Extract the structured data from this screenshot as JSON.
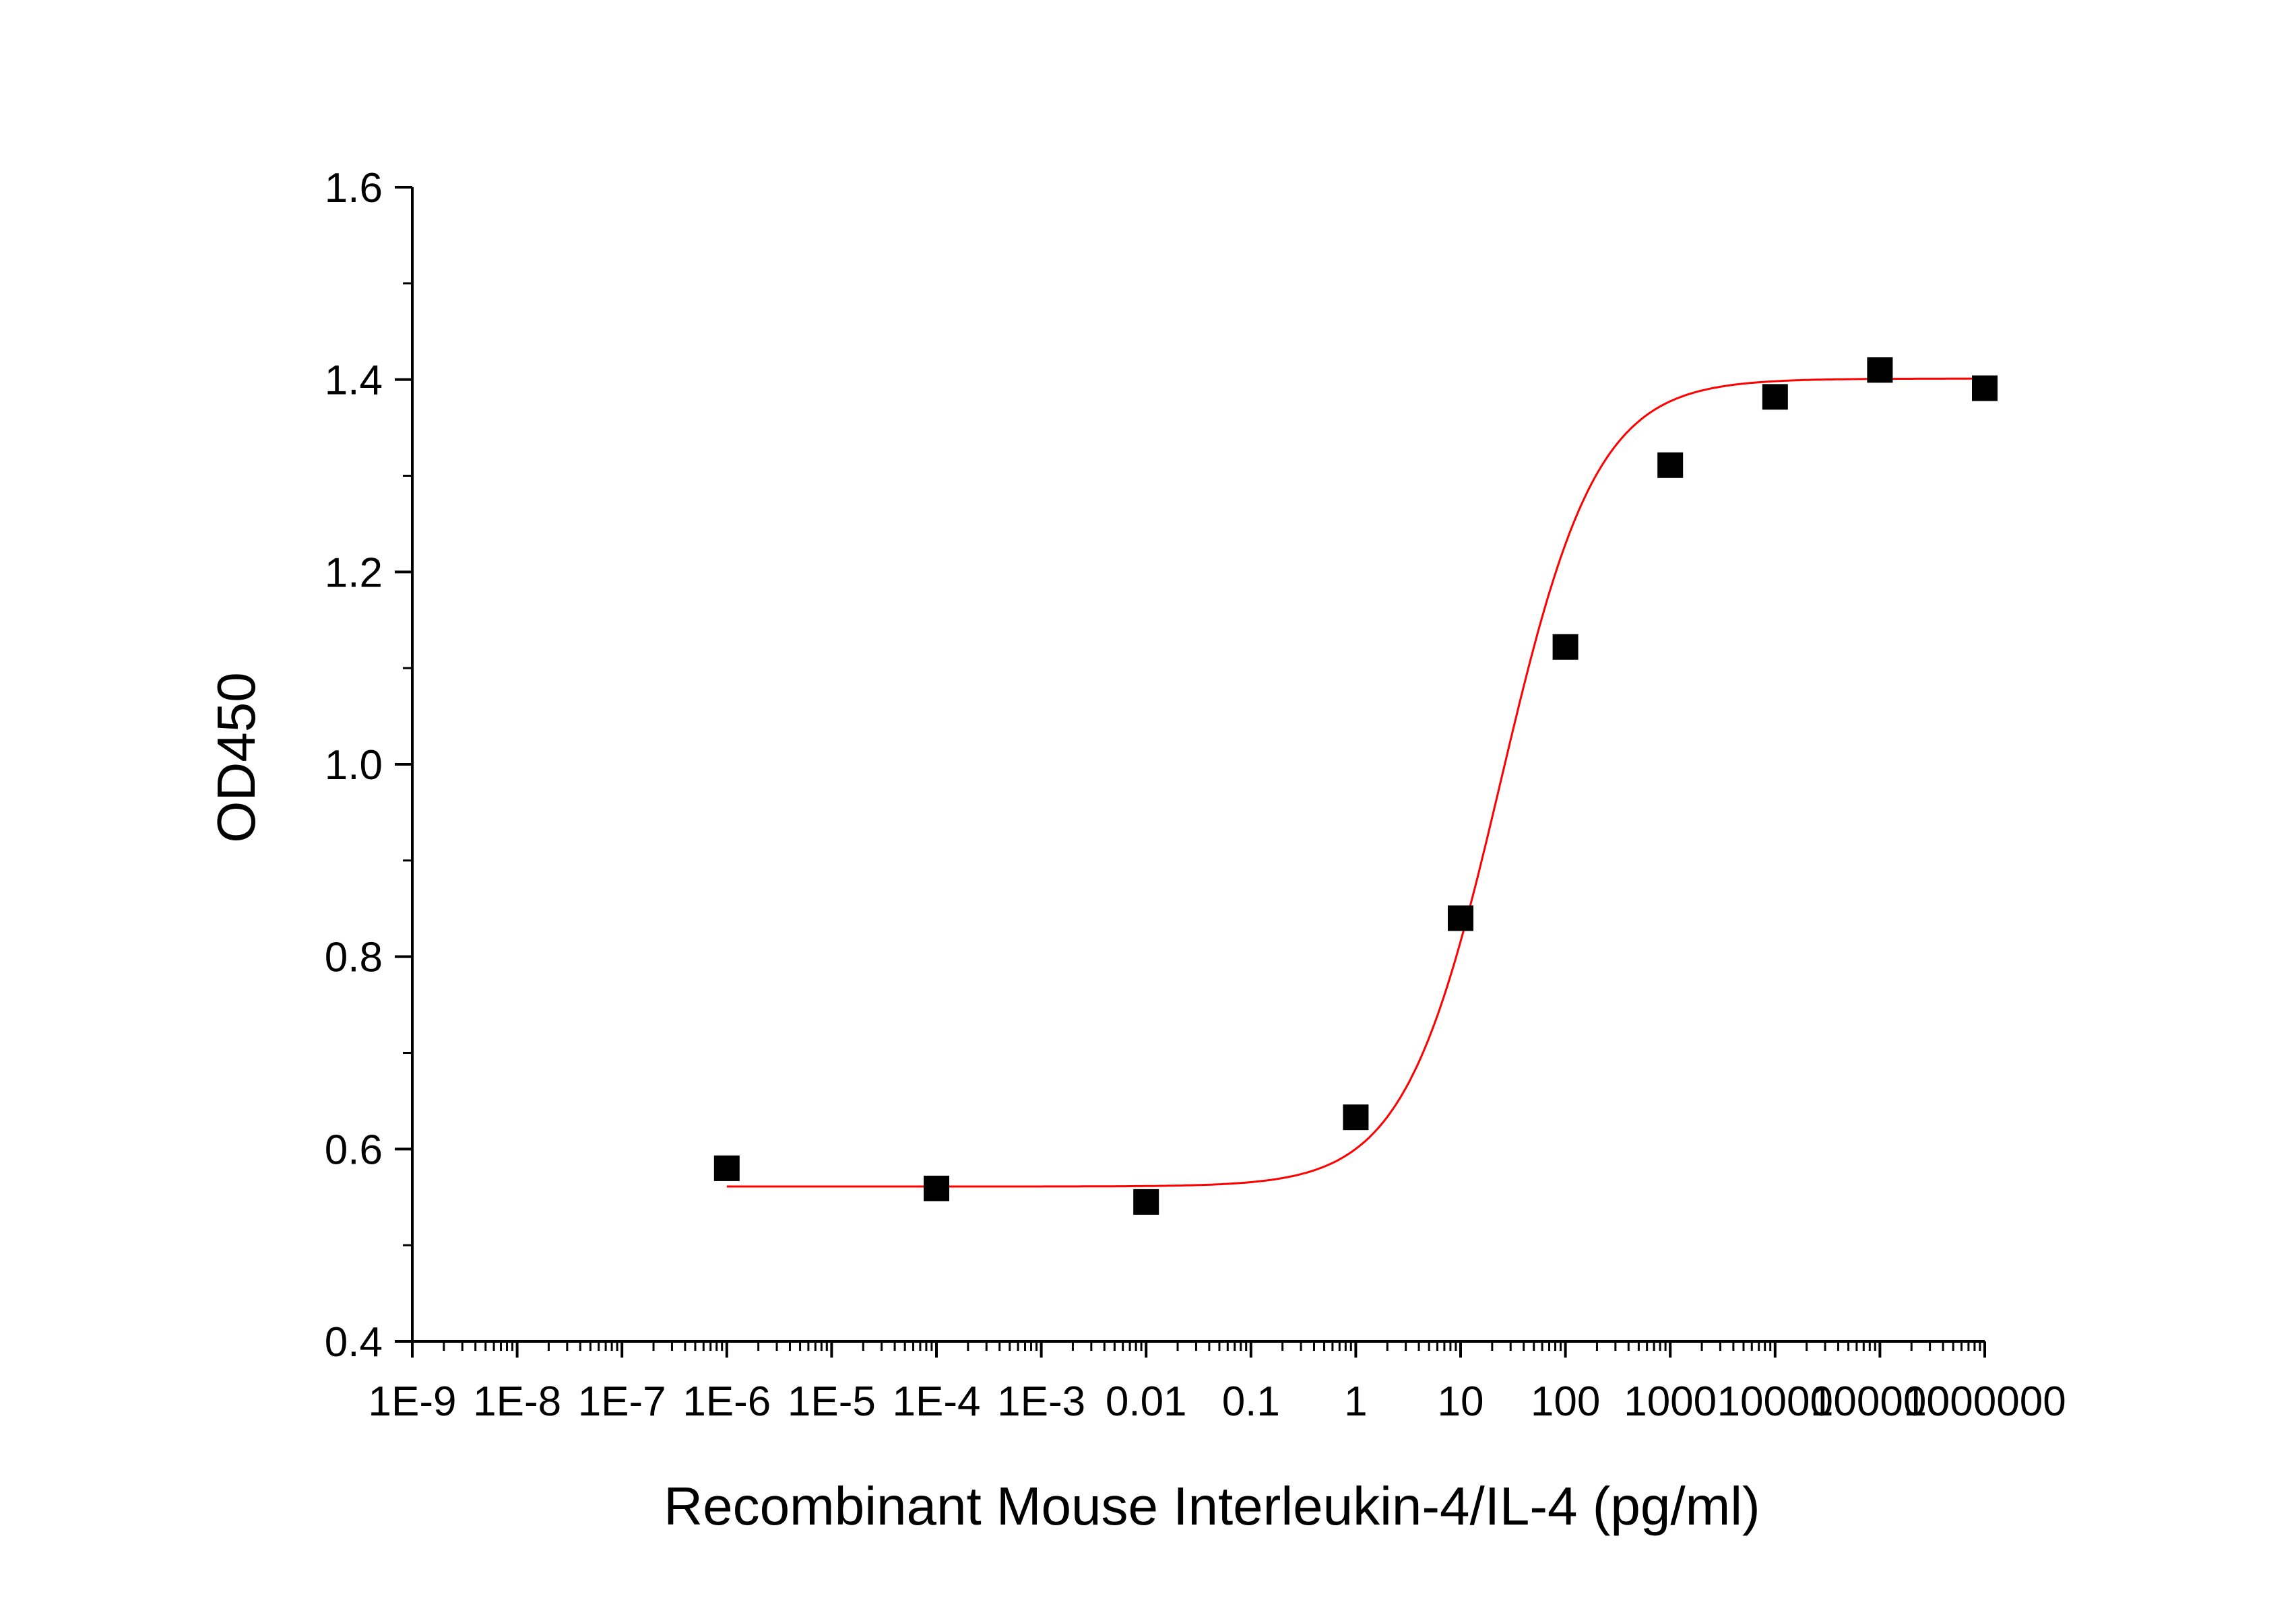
{
  "chart_data": {
    "type": "scatter",
    "xscale": "log",
    "xlabel": "Recombinant Mouse Interleukin-4/IL-4 (pg/ml)",
    "ylabel": "OD450",
    "xlim": [
      1e-09,
      1000000
    ],
    "ylim": [
      0.4,
      1.6
    ],
    "x_ticks": [
      {
        "value": 1e-09,
        "label": "1E-9"
      },
      {
        "value": 1e-08,
        "label": "1E-8"
      },
      {
        "value": 1e-07,
        "label": "1E-7"
      },
      {
        "value": 1e-06,
        "label": "1E-6"
      },
      {
        "value": 1e-05,
        "label": "1E-5"
      },
      {
        "value": 0.0001,
        "label": "1E-4"
      },
      {
        "value": 0.001,
        "label": "1E-3"
      },
      {
        "value": 0.01,
        "label": "0.01"
      },
      {
        "value": 0.1,
        "label": "0.1"
      },
      {
        "value": 1,
        "label": "1"
      },
      {
        "value": 10,
        "label": "10"
      },
      {
        "value": 100,
        "label": "100"
      },
      {
        "value": 1000,
        "label": "1000"
      },
      {
        "value": 10000,
        "label": "10000"
      },
      {
        "value": 100000,
        "label": "100000"
      },
      {
        "value": 1000000,
        "label": "1000000"
      }
    ],
    "y_ticks": [
      {
        "value": 0.4,
        "label": "0.4"
      },
      {
        "value": 0.6,
        "label": "0.6"
      },
      {
        "value": 0.8,
        "label": "0.8"
      },
      {
        "value": 1.0,
        "label": "1.0"
      },
      {
        "value": 1.2,
        "label": "1.2"
      },
      {
        "value": 1.4,
        "label": "1.4"
      },
      {
        "value": 1.6,
        "label": "1.6"
      }
    ],
    "grid": false,
    "series": [
      {
        "marker": "square",
        "color": "#000000",
        "points": [
          {
            "x": 1e-06,
            "y": 0.58
          },
          {
            "x": 0.0001,
            "y": 0.559
          },
          {
            "x": 0.01,
            "y": 0.545
          },
          {
            "x": 1,
            "y": 0.633
          },
          {
            "x": 10,
            "y": 0.84
          },
          {
            "x": 100,
            "y": 1.122
          },
          {
            "x": 1000,
            "y": 1.311
          },
          {
            "x": 10000,
            "y": 1.382
          },
          {
            "x": 100000,
            "y": 1.41
          },
          {
            "x": 1000000,
            "y": 1.391
          }
        ]
      },
      {
        "type": "line",
        "fit": "four-parameter logistic",
        "color": "#ff0000",
        "bottom": 0.561,
        "top": 1.401,
        "log_ec50": 1.38,
        "hill_slope": 0.95,
        "x_range": [
          1e-06,
          1000000
        ]
      }
    ]
  }
}
